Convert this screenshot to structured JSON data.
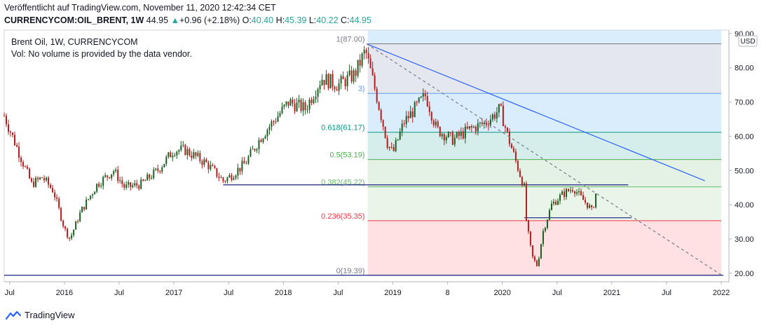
{
  "header": {
    "published": "Veröffentlicht auf TradingView.com, November 11, 2020 12:42:34 CET",
    "symbol": "CURRENCYCOM:OIL_BRENT, 1W",
    "last": "44.95",
    "change_arrow": "▲",
    "change": "+0.96 (+2.18%)",
    "o_label": "O:",
    "o": "40.40",
    "h_label": "H:",
    "h": "45.39",
    "l_label": "L:",
    "l": "40.22",
    "c_label": "C:",
    "c": "44.95"
  },
  "legend": {
    "title": "Brent Oil, 1W, CURRENCYCOM",
    "vol": "Vol: No volume is provided by the data vendor."
  },
  "currency": "USD",
  "footer": {
    "brand": "TradingView"
  },
  "colors": {
    "up": "#26a69a",
    "down": "#ef5350",
    "candle_up": "#1b5e20",
    "candle_down": "#b71c1c",
    "trend": "#2962ff"
  },
  "chart_data": {
    "type": "candlestick",
    "y_ticks": [
      "20.00",
      "30.00",
      "40.00",
      "50.00",
      "60.00",
      "70.00",
      "80.00",
      "90.00"
    ],
    "y_range": [
      17.5,
      91
    ],
    "x_ticks": [
      {
        "label": "Jul",
        "t": 2015.5
      },
      {
        "label": "2016",
        "t": 2016.0
      },
      {
        "label": "Jul",
        "t": 2016.5
      },
      {
        "label": "2017",
        "t": 2017.0
      },
      {
        "label": "Jul",
        "t": 2017.5
      },
      {
        "label": "2018",
        "t": 2018.0
      },
      {
        "label": "Jul",
        "t": 2018.5
      },
      {
        "label": "2019",
        "t": 2019.0
      },
      {
        "label": "8",
        "t": 2019.5
      },
      {
        "label": "2020",
        "t": 2020.0
      },
      {
        "label": "Jul",
        "t": 2020.5
      },
      {
        "label": "2021",
        "t": 2021.0
      },
      {
        "label": "Jul",
        "t": 2021.5
      },
      {
        "label": "2022",
        "t": 2022.0
      }
    ],
    "x_range": [
      2015.45,
      2022.07
    ],
    "price_path": [
      [
        2015.45,
        66
      ],
      [
        2015.55,
        58
      ],
      [
        2015.7,
        46
      ],
      [
        2015.8,
        48
      ],
      [
        2015.9,
        44
      ],
      [
        2016.0,
        33
      ],
      [
        2016.05,
        30
      ],
      [
        2016.15,
        38
      ],
      [
        2016.3,
        46
      ],
      [
        2016.45,
        50
      ],
      [
        2016.55,
        45
      ],
      [
        2016.7,
        46
      ],
      [
        2016.85,
        50
      ],
      [
        2017.0,
        56
      ],
      [
        2017.1,
        56
      ],
      [
        2017.3,
        52
      ],
      [
        2017.45,
        47
      ],
      [
        2017.5,
        48
      ],
      [
        2017.65,
        52
      ],
      [
        2017.8,
        60
      ],
      [
        2017.95,
        66
      ],
      [
        2018.05,
        70
      ],
      [
        2018.2,
        68
      ],
      [
        2018.35,
        77
      ],
      [
        2018.5,
        75
      ],
      [
        2018.65,
        78
      ],
      [
        2018.75,
        85
      ],
      [
        2018.85,
        72
      ],
      [
        2018.95,
        58
      ],
      [
        2019.0,
        55
      ],
      [
        2019.1,
        64
      ],
      [
        2019.3,
        72
      ],
      [
        2019.4,
        62
      ],
      [
        2019.55,
        59
      ],
      [
        2019.7,
        62
      ],
      [
        2019.85,
        64
      ],
      [
        2019.98,
        68
      ],
      [
        2020.05,
        60
      ],
      [
        2020.15,
        50
      ],
      [
        2020.2,
        45
      ],
      [
        2020.22,
        35
      ],
      [
        2020.27,
        25
      ],
      [
        2020.32,
        22
      ],
      [
        2020.37,
        32
      ],
      [
        2020.45,
        40
      ],
      [
        2020.55,
        43
      ],
      [
        2020.65,
        45
      ],
      [
        2020.72,
        42
      ],
      [
        2020.78,
        40
      ],
      [
        2020.82,
        38
      ],
      [
        2020.865,
        44.95
      ]
    ],
    "fib_levels": [
      {
        "ratio": "1",
        "value": 87.0,
        "label": "1(87.00)"
      },
      {
        "ratio": "0.786",
        "value": 72.53,
        "label": "3)"
      },
      {
        "ratio": "0.618",
        "value": 61.17,
        "label": "0.618(61.17)"
      },
      {
        "ratio": "0.5",
        "value": 53.19,
        "label": "0.5(53.19)"
      },
      {
        "ratio": "0.382",
        "value": 45.22,
        "label": "0.382(45.22)"
      },
      {
        "ratio": "0.236",
        "value": 35.35,
        "label": "0.236(35.35)"
      },
      {
        "ratio": "0",
        "value": 19.39,
        "label": "0(19.39)"
      }
    ],
    "fib_range_t": [
      2018.77,
      2022.0
    ],
    "trendlines": [
      {
        "from": [
          2018.76,
          87.0
        ],
        "to": [
          2021.85,
          47.0
        ],
        "style": "solid"
      },
      {
        "from": [
          2018.76,
          87.0
        ],
        "to": [
          2022.0,
          19.5
        ],
        "style": "dashed"
      }
    ],
    "hlines": [
      {
        "value": 45.8,
        "from_t": 2017.45,
        "to_t": 2021.15
      },
      {
        "value": 36.2,
        "from_t": 2020.2,
        "to_t": 2021.18
      },
      {
        "value": 19.4,
        "from_t": 2015.45,
        "to_t": 2022.02
      }
    ]
  }
}
